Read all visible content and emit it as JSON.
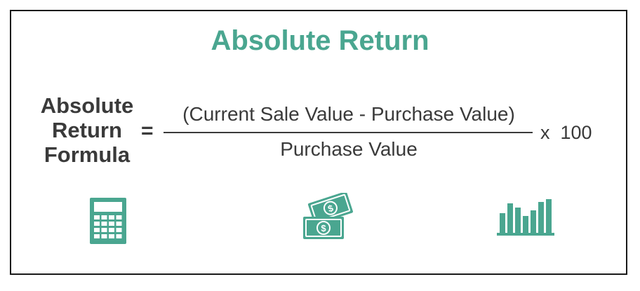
{
  "title": "Absolute Return",
  "formula": {
    "lhs_lines": [
      "Absolute",
      "Return",
      "Formula"
    ],
    "equals": "=",
    "numerator": "(Current Sale Value - Purchase Value)",
    "denominator": "Purchase Value",
    "multiplier": "x  100"
  },
  "icons": [
    {
      "name": "calculator-icon"
    },
    {
      "name": "money-icon"
    },
    {
      "name": "bar-chart-icon"
    }
  ],
  "colors": {
    "accent": "#4aa690",
    "text": "#3a3a3a",
    "border": "#1a1a1a"
  }
}
